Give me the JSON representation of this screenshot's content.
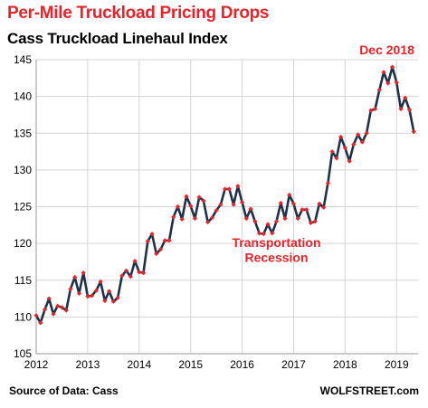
{
  "header": {
    "title": "Per-Mile Truckload Pricing Drops",
    "subtitle": "Cass Truckload Linehaul Index"
  },
  "footer": {
    "source": "Source of Data: Cass",
    "brand": "WOLFSTREET.com"
  },
  "chart_data": {
    "type": "line",
    "title": "Per-Mile Truckload Pricing Drops",
    "subtitle": "Cass Truckload Linehaul Index",
    "xlabel": "",
    "ylabel": "",
    "ylim": [
      105,
      145
    ],
    "yticks": [
      105,
      110,
      115,
      120,
      125,
      130,
      135,
      140,
      145
    ],
    "xlim": [
      "2012-01",
      "2019-06"
    ],
    "xticks": [
      "2012",
      "2013",
      "2014",
      "2015",
      "2016",
      "2017",
      "2018",
      "2019"
    ],
    "grid": true,
    "line_color": "#1f3049",
    "marker_color": "#e8232a",
    "x": [
      "2012-01",
      "2012-02",
      "2012-03",
      "2012-04",
      "2012-05",
      "2012-06",
      "2012-07",
      "2012-08",
      "2012-09",
      "2012-10",
      "2012-11",
      "2012-12",
      "2013-01",
      "2013-02",
      "2013-03",
      "2013-04",
      "2013-05",
      "2013-06",
      "2013-07",
      "2013-08",
      "2013-09",
      "2013-10",
      "2013-11",
      "2013-12",
      "2014-01",
      "2014-02",
      "2014-03",
      "2014-04",
      "2014-05",
      "2014-06",
      "2014-07",
      "2014-08",
      "2014-09",
      "2014-10",
      "2014-11",
      "2014-12",
      "2015-01",
      "2015-02",
      "2015-03",
      "2015-04",
      "2015-05",
      "2015-06",
      "2015-07",
      "2015-08",
      "2015-09",
      "2015-10",
      "2015-11",
      "2015-12",
      "2016-01",
      "2016-02",
      "2016-03",
      "2016-04",
      "2016-05",
      "2016-06",
      "2016-07",
      "2016-08",
      "2016-09",
      "2016-10",
      "2016-11",
      "2016-12",
      "2017-01",
      "2017-02",
      "2017-03",
      "2017-04",
      "2017-05",
      "2017-06",
      "2017-07",
      "2017-08",
      "2017-09",
      "2017-10",
      "2017-11",
      "2017-12",
      "2018-01",
      "2018-02",
      "2018-03",
      "2018-04",
      "2018-05",
      "2018-06",
      "2018-07",
      "2018-08",
      "2018-09",
      "2018-10",
      "2018-11",
      "2018-12",
      "2019-01",
      "2019-02",
      "2019-03",
      "2019-04",
      "2019-05"
    ],
    "values": [
      110.2,
      109.2,
      111.0,
      112.5,
      110.4,
      111.5,
      111.3,
      110.9,
      113.8,
      115.4,
      113.2,
      116.0,
      112.8,
      112.9,
      113.6,
      114.8,
      112.2,
      113.5,
      112.1,
      112.6,
      115.6,
      116.3,
      115.5,
      117.6,
      116.1,
      116.0,
      120.3,
      121.3,
      118.6,
      119.2,
      120.4,
      120.4,
      123.6,
      125.0,
      123.3,
      126.4,
      125.1,
      123.4,
      126.3,
      125.8,
      122.9,
      123.5,
      124.5,
      125.3,
      127.4,
      127.4,
      125.3,
      127.8,
      125.6,
      123.4,
      124.7,
      123.0,
      121.4,
      121.3,
      122.6,
      121.4,
      123.0,
      125.5,
      123.4,
      126.6,
      125.4,
      123.4,
      124.6,
      124.6,
      122.8,
      123.0,
      125.4,
      124.9,
      128.2,
      132.5,
      131.6,
      134.5,
      133.0,
      131.2,
      133.5,
      134.8,
      133.8,
      135.0,
      138.1,
      138.3,
      140.9,
      143.3,
      141.8,
      144.0,
      141.9,
      138.3,
      139.8,
      138.2,
      135.2
    ],
    "annotations": [
      {
        "text": "Dec 2018",
        "x": "2018-12",
        "y": 144.0
      },
      {
        "text": "Transportation",
        "x": "2016-09",
        "y": 119.5
      },
      {
        "text": "Recession",
        "x": "2016-09",
        "y": 117.5
      }
    ]
  }
}
